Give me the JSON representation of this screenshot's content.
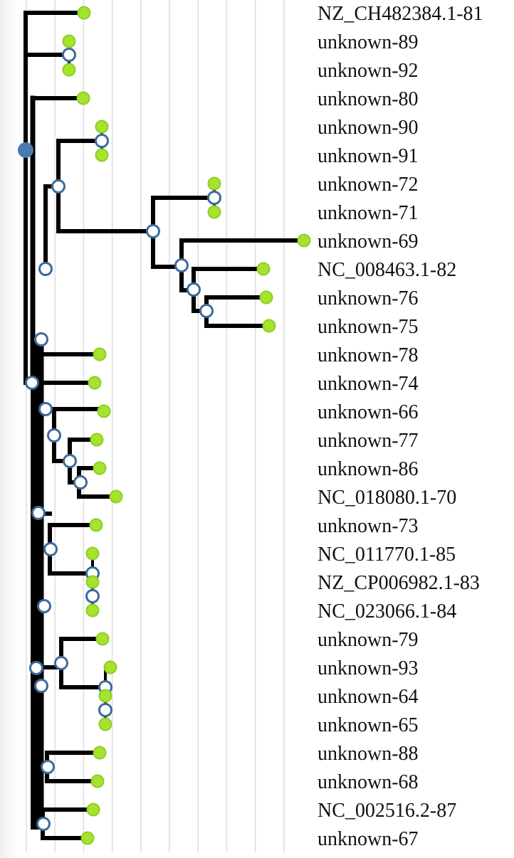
{
  "tree": {
    "colors": {
      "branch": "#000000",
      "grid": "#dddddd",
      "leaf_fill": "#a6e22e",
      "leaf_stroke": "#8ccf26",
      "internal_fill": "#ffffff",
      "internal_stroke": "#3d6a99",
      "root_fill": "#4a7bb0",
      "label": "#111111"
    },
    "leaves": [
      {
        "label": "NZ_CH482384.1-81"
      },
      {
        "label": "unknown-89"
      },
      {
        "label": "unknown-92"
      },
      {
        "label": "unknown-80"
      },
      {
        "label": "unknown-90"
      },
      {
        "label": "unknown-91"
      },
      {
        "label": "unknown-72"
      },
      {
        "label": "unknown-71"
      },
      {
        "label": "unknown-69"
      },
      {
        "label": "NC_008463.1-82"
      },
      {
        "label": "unknown-76"
      },
      {
        "label": "unknown-75"
      },
      {
        "label": "unknown-78"
      },
      {
        "label": "unknown-74"
      },
      {
        "label": "unknown-66"
      },
      {
        "label": "unknown-77"
      },
      {
        "label": "unknown-86"
      },
      {
        "label": "NC_018080.1-70"
      },
      {
        "label": "unknown-73"
      },
      {
        "label": "NC_011770.1-85"
      },
      {
        "label": "NZ_CP006982.1-83"
      },
      {
        "label": "NC_023066.1-84"
      },
      {
        "label": "unknown-79"
      },
      {
        "label": "unknown-93"
      },
      {
        "label": "unknown-64"
      },
      {
        "label": "unknown-65"
      },
      {
        "label": "unknown-88"
      },
      {
        "label": "unknown-68"
      },
      {
        "label": "NC_002516.2-87"
      },
      {
        "label": "unknown-67"
      }
    ]
  }
}
